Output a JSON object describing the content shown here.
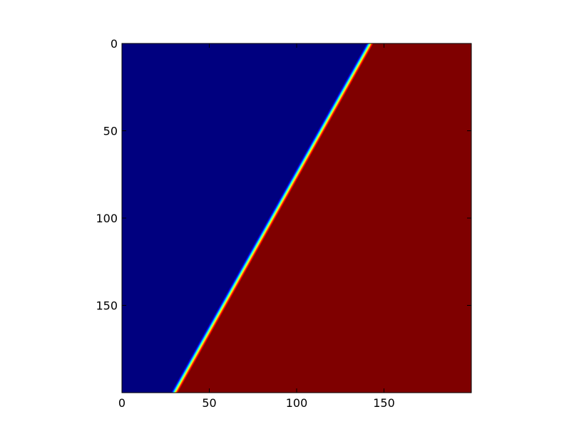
{
  "chart_data": {
    "type": "heatmap",
    "title": "",
    "xlabel": "",
    "ylabel": "",
    "xlim": [
      0,
      200
    ],
    "ylim": [
      200,
      0
    ],
    "x_ticks": [
      0,
      50,
      100,
      150
    ],
    "y_ticks": [
      0,
      50,
      100,
      150
    ],
    "x_tick_labels": [
      "0",
      "50",
      "100",
      "150"
    ],
    "y_tick_labels": [
      "0",
      "50",
      "100",
      "150"
    ],
    "colormap": "jet",
    "value_range": [
      0,
      1
    ],
    "front": {
      "description": "sharp diagonal transition from low to high values",
      "x_at_row_0": 142,
      "x_at_row_200": 30,
      "width": 4
    },
    "regions": [
      {
        "name": "low",
        "value": 0,
        "side": "left"
      },
      {
        "name": "high",
        "value": 1,
        "side": "right"
      }
    ],
    "colors": {
      "low": "#00007f",
      "high": "#7f0000",
      "ramp": [
        "#00007f",
        "#0000ff",
        "#00ffff",
        "#ffff00",
        "#ff0000",
        "#7f0000"
      ]
    }
  }
}
